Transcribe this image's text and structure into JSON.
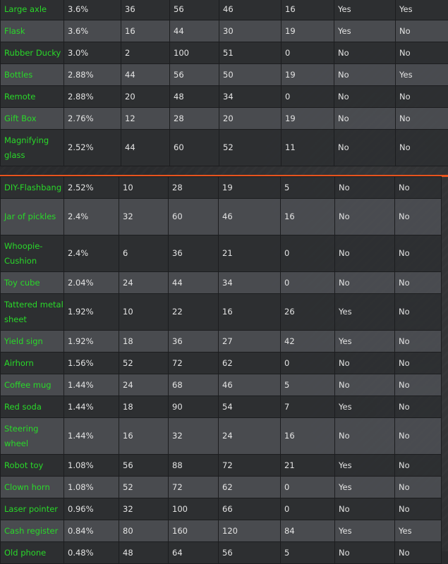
{
  "tables": [
    {
      "rows": [
        {
          "name": "Large axle",
          "chance": "3.6%",
          "c2": "36",
          "c3": "56",
          "c4": "46",
          "c5": "16",
          "c6": "Yes",
          "c7": "Yes"
        },
        {
          "name": "Flask",
          "chance": "3.6%",
          "c2": "16",
          "c3": "44",
          "c4": "30",
          "c5": "19",
          "c6": "Yes",
          "c7": "No"
        },
        {
          "name": "Rubber Ducky",
          "chance": "3.0%",
          "c2": "2",
          "c3": "100",
          "c4": "51",
          "c5": "0",
          "c6": "No",
          "c7": "No"
        },
        {
          "name": "Bottles",
          "chance": "2.88%",
          "c2": "44",
          "c3": "56",
          "c4": "50",
          "c5": "19",
          "c6": "No",
          "c7": "Yes"
        },
        {
          "name": "Remote",
          "chance": "2.88%",
          "c2": "20",
          "c3": "48",
          "c4": "34",
          "c5": "0",
          "c6": "No",
          "c7": "No"
        },
        {
          "name": "Gift Box",
          "chance": "2.76%",
          "c2": "12",
          "c3": "28",
          "c4": "20",
          "c5": "19",
          "c6": "No",
          "c7": "No"
        },
        {
          "name": "Magnifying glass",
          "chance": "2.52%",
          "c2": "44",
          "c3": "60",
          "c4": "52",
          "c5": "11",
          "c6": "No",
          "c7": "No"
        }
      ]
    },
    {
      "rows": [
        {
          "name": "DIY-Flashbang",
          "chance": "2.52%",
          "c2": "10",
          "c3": "28",
          "c4": "19",
          "c5": "5",
          "c6": "No",
          "c7": "No"
        },
        {
          "name": "Jar of pickles",
          "chance": "2.4%",
          "c2": "32",
          "c3": "60",
          "c4": "46",
          "c5": "16",
          "c6": "No",
          "c7": "No"
        },
        {
          "name": "Whoopie-Cushion",
          "chance": "2.4%",
          "c2": "6",
          "c3": "36",
          "c4": "21",
          "c5": "0",
          "c6": "No",
          "c7": "No"
        },
        {
          "name": "Toy cube",
          "chance": "2.04%",
          "c2": "24",
          "c3": "44",
          "c4": "34",
          "c5": "0",
          "c6": "No",
          "c7": "No"
        },
        {
          "name": "Tattered metal sheet",
          "chance": "1.92%",
          "c2": "10",
          "c3": "22",
          "c4": "16",
          "c5": "26",
          "c6": "Yes",
          "c7": "No"
        },
        {
          "name": "Yield sign",
          "chance": "1.92%",
          "c2": "18",
          "c3": "36",
          "c4": "27",
          "c5": "42",
          "c6": "Yes",
          "c7": "No"
        },
        {
          "name": "Airhorn",
          "chance": "1.56%",
          "c2": "52",
          "c3": "72",
          "c4": "62",
          "c5": "0",
          "c6": "No",
          "c7": "No"
        },
        {
          "name": "Coffee mug",
          "chance": "1.44%",
          "c2": "24",
          "c3": "68",
          "c4": "46",
          "c5": "5",
          "c6": "No",
          "c7": "No"
        },
        {
          "name": "Red soda",
          "chance": "1.44%",
          "c2": "18",
          "c3": "90",
          "c4": "54",
          "c5": "7",
          "c6": "Yes",
          "c7": "No"
        },
        {
          "name": "Steering wheel",
          "chance": "1.44%",
          "c2": "16",
          "c3": "32",
          "c4": "24",
          "c5": "16",
          "c6": "No",
          "c7": "No"
        },
        {
          "name": "Robot toy",
          "chance": "1.08%",
          "c2": "56",
          "c3": "88",
          "c4": "72",
          "c5": "21",
          "c6": "Yes",
          "c7": "No"
        },
        {
          "name": "Clown horn",
          "chance": "1.08%",
          "c2": "52",
          "c3": "72",
          "c4": "62",
          "c5": "0",
          "c6": "Yes",
          "c7": "No"
        },
        {
          "name": "Laser pointer",
          "chance": "0.96%",
          "c2": "32",
          "c3": "100",
          "c4": "66",
          "c5": "0",
          "c6": "No",
          "c7": "No"
        },
        {
          "name": "Cash register",
          "chance": "0.84%",
          "c2": "80",
          "c3": "160",
          "c4": "120",
          "c5": "84",
          "c6": "Yes",
          "c7": "Yes"
        },
        {
          "name": "Old phone",
          "chance": "0.48%",
          "c2": "48",
          "c3": "64",
          "c4": "56",
          "c5": "5",
          "c6": "No",
          "c7": "No"
        }
      ]
    }
  ]
}
